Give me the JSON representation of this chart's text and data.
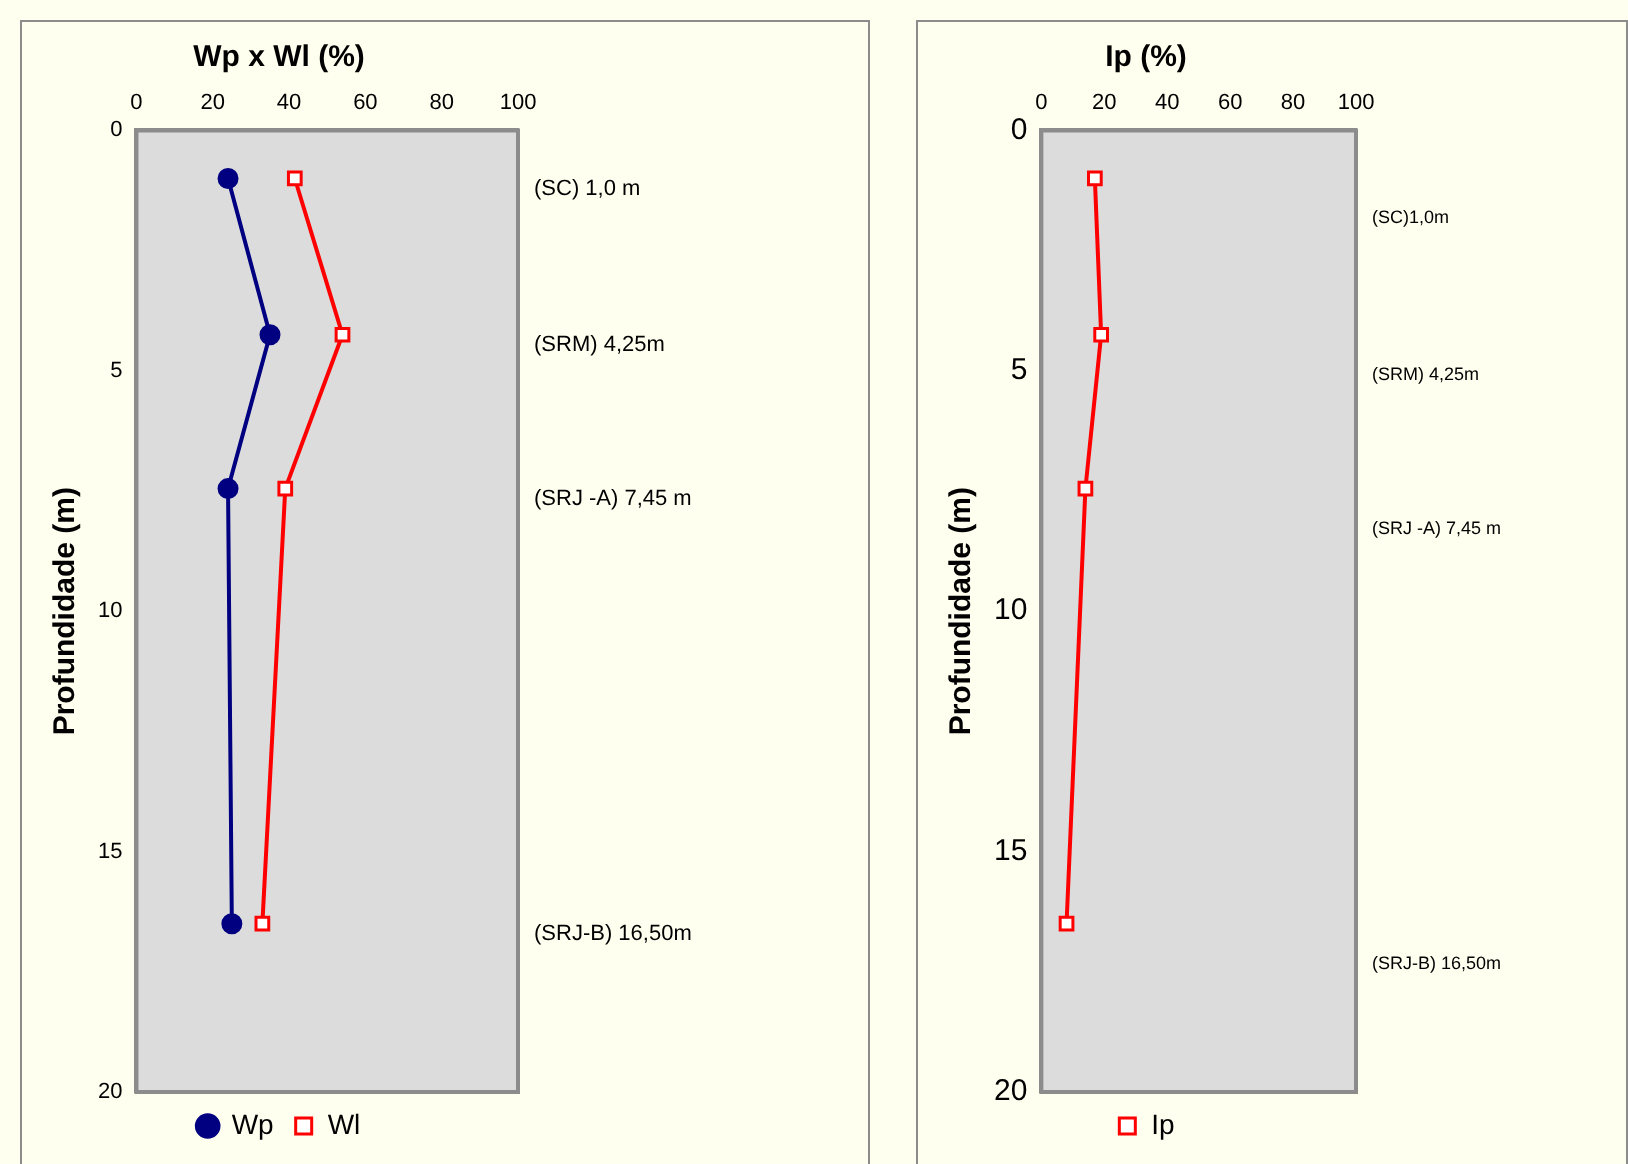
{
  "chart_data": [
    {
      "type": "line",
      "title": "Wp x Wl (%)",
      "ylabel": "Profundidade (m)",
      "xlim": [
        0,
        100
      ],
      "xticks": [
        0,
        20,
        40,
        60,
        80,
        100
      ],
      "ylim": [
        20,
        0
      ],
      "yticks": [
        0,
        5,
        10,
        15,
        20
      ],
      "grid": false,
      "legend": "bottom",
      "line_style": "solid",
      "series": [
        {
          "name": "Wp",
          "color": "#000080",
          "marker": "circle",
          "x": [
            24,
            35,
            24,
            25
          ],
          "values": [
            1.0,
            4.25,
            7.45,
            16.5
          ]
        },
        {
          "name": "Wl",
          "color": "#ff0000",
          "marker": "square",
          "x": [
            41.5,
            54,
            39,
            33
          ],
          "values": [
            1.0,
            4.25,
            7.45,
            16.5
          ]
        }
      ],
      "annotations": [
        "(SC) 1,0 m",
        "(SRM) 4,25m",
        "(SRJ -A) 7,45 m",
        "(SRJ-B) 16,50m"
      ]
    },
    {
      "type": "line",
      "title": "Ip (%)",
      "ylabel": "Profundidade (m)",
      "xlim": [
        0,
        100
      ],
      "xticks": [
        0,
        20,
        40,
        60,
        80,
        100
      ],
      "ylim": [
        20,
        0
      ],
      "yticks": [
        0,
        5,
        10,
        15,
        20
      ],
      "grid": false,
      "legend": "bottom",
      "line_style": "solid",
      "series": [
        {
          "name": "Ip",
          "color": "#ff0000",
          "marker": "square",
          "x": [
            17,
            19,
            14,
            8
          ],
          "values": [
            1.0,
            4.25,
            7.45,
            16.5
          ]
        }
      ],
      "annotations": [
        "(SC)1,0m",
        "(SRM) 4,25m",
        "(SRJ -A) 7,45 m",
        "(SRJ-B) 16,50m"
      ]
    }
  ]
}
